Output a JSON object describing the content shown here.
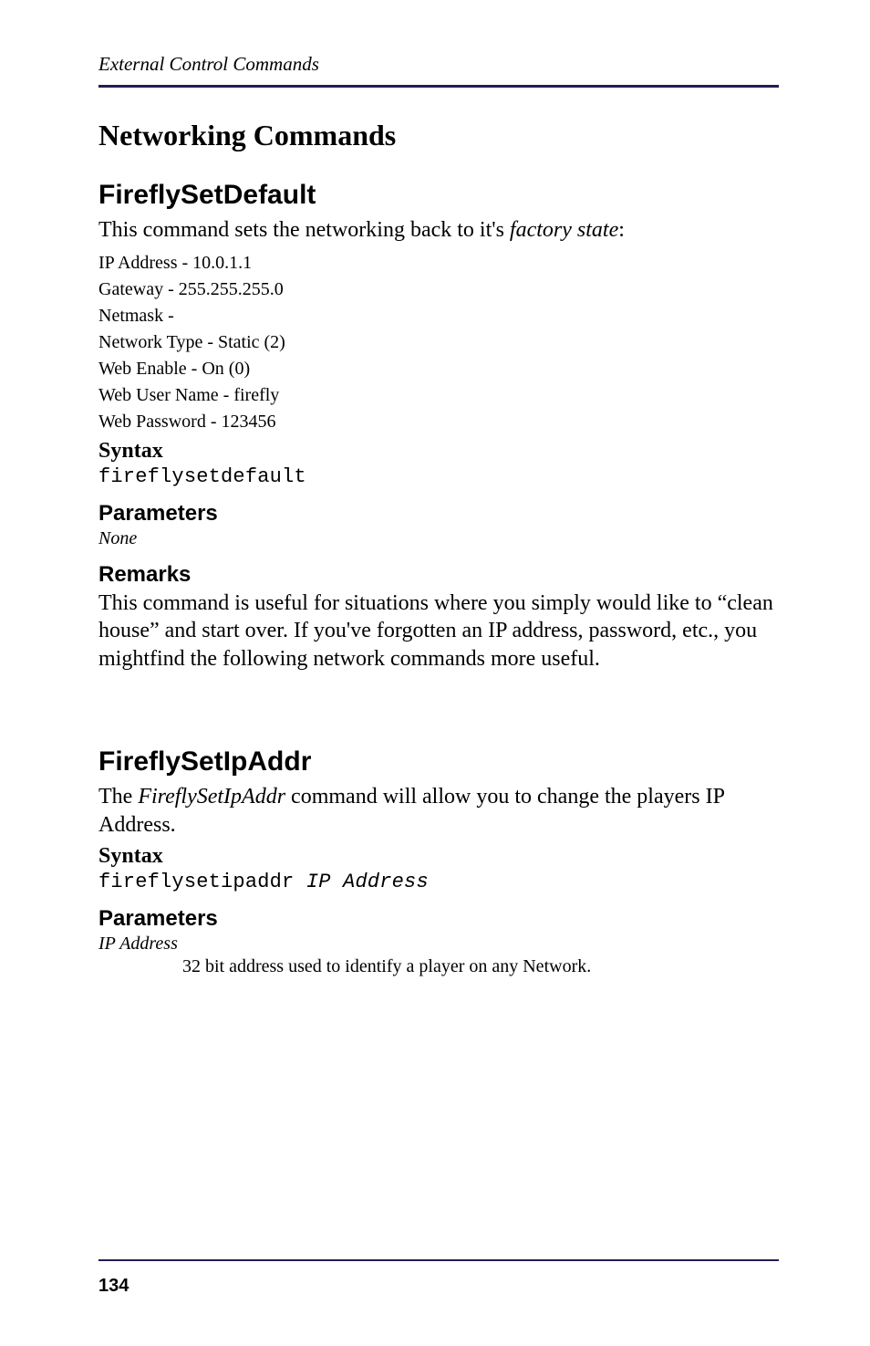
{
  "running_header": "External Control Commands",
  "section_title": "Networking Commands",
  "cmd1": {
    "title": "FireflySetDefault",
    "intro_a": "This command sets the networking back to it's ",
    "intro_italic": "factory state",
    "intro_b": ":",
    "defaults": [
      "IP Address - 10.0.1.1",
      "Gateway - 255.255.255.0",
      "Netmask -",
      "Network Type - Static (2)",
      "Web Enable - On (0)",
      "Web User Name - firefly",
      "Web Password - 123456"
    ],
    "syntax_label": "Syntax",
    "syntax_code": "fireflysetdefault",
    "params_h": "Parameters",
    "params_none": "None",
    "remarks_h": "Remarks",
    "remarks_body": "This command is useful for situations where you simply would like to “clean house” and start over. If you've forgotten an IP address, password, etc., you mightfind the following network commands more useful."
  },
  "cmd2": {
    "title": "FireflySetIpAddr",
    "intro_a": "The ",
    "intro_italic": "FireflySetIpAddr",
    "intro_b": " command will allow you to change the players  IP Address.",
    "syntax_label": "Syntax",
    "syntax_code_plain": "fireflysetipaddr ",
    "syntax_code_arg": "IP Address",
    "params_h": "Parameters",
    "param_name": "IP Address",
    "param_desc": "32 bit address used to identify a player on any Network."
  },
  "page_number": "134",
  "colors": {
    "rule": "#221f54",
    "text": "#000000",
    "bg": "#ffffff"
  }
}
